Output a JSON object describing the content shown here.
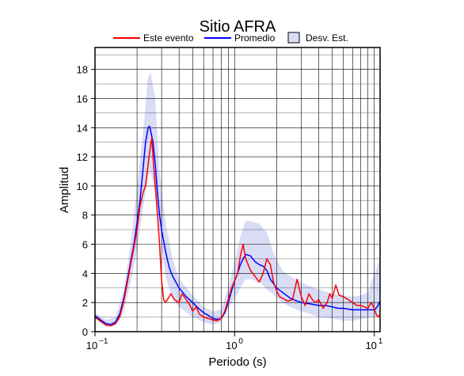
{
  "chart_data": {
    "type": "line",
    "title": "Sitio AFRA",
    "xlabel": "Periodo (s)",
    "ylabel": "Amplitud",
    "x_scale": "log",
    "xlim": [
      0.1,
      11
    ],
    "ylim": [
      0,
      19.5
    ],
    "grid": true,
    "legend_position": "top",
    "x_ticks": [
      {
        "value": 0.1,
        "base": "10",
        "exp": "−1"
      },
      {
        "value": 1,
        "base": "10",
        "exp": "0"
      },
      {
        "value": 10,
        "base": "10",
        "exp": "1"
      }
    ],
    "y_ticks": [
      0,
      2,
      4,
      6,
      8,
      10,
      12,
      14,
      16,
      18
    ],
    "legend": [
      {
        "label": "Este evento",
        "kind": "line",
        "color": "#ff0000"
      },
      {
        "label": "Promedio",
        "kind": "line",
        "color": "#0000ff"
      },
      {
        "label": "Desv. Est.",
        "kind": "patch",
        "color": "#d8dcf5"
      }
    ],
    "band": {
      "name": "Desv. Est.",
      "color": "#d8dcf5",
      "x": [
        0.1,
        0.12,
        0.14,
        0.16,
        0.18,
        0.2,
        0.22,
        0.24,
        0.25,
        0.27,
        0.29,
        0.32,
        0.36,
        0.4,
        0.5,
        0.6,
        0.7,
        0.8,
        0.9,
        1.0,
        1.1,
        1.2,
        1.3,
        1.5,
        1.7,
        1.9,
        2.2,
        2.5,
        3,
        3.5,
        4,
        5,
        6,
        7,
        8,
        9,
        10,
        11
      ],
      "upper": [
        1.3,
        0.8,
        1.0,
        2.8,
        6.0,
        10.0,
        13.5,
        17.5,
        17.8,
        16.0,
        11.0,
        7.5,
        5.0,
        3.6,
        2.5,
        1.7,
        1.4,
        1.5,
        3.0,
        4.8,
        6.5,
        7.6,
        7.6,
        7.4,
        6.8,
        5.4,
        4.2,
        3.8,
        3.4,
        3.1,
        2.9,
        2.6,
        2.5,
        2.4,
        2.5,
        2.7,
        4.0,
        5.0
      ],
      "lower": [
        0.9,
        0.35,
        0.45,
        1.3,
        3.4,
        5.6,
        8.4,
        10.6,
        11.0,
        9.6,
        6.8,
        3.8,
        2.2,
        1.7,
        1.0,
        0.65,
        0.5,
        0.65,
        1.6,
        2.3,
        3.0,
        3.6,
        3.6,
        3.4,
        2.9,
        2.5,
        2.0,
        1.7,
        1.4,
        1.2,
        1.0,
        0.9,
        0.75,
        0.75,
        0.85,
        0.95,
        1.0,
        1.3
      ]
    },
    "series": [
      {
        "name": "Promedio",
        "color": "#0000ff",
        "x": [
          0.1,
          0.11,
          0.12,
          0.13,
          0.14,
          0.15,
          0.16,
          0.17,
          0.18,
          0.19,
          0.2,
          0.21,
          0.22,
          0.23,
          0.24,
          0.245,
          0.25,
          0.26,
          0.27,
          0.28,
          0.29,
          0.3,
          0.32,
          0.34,
          0.36,
          0.4,
          0.45,
          0.5,
          0.55,
          0.6,
          0.65,
          0.7,
          0.75,
          0.8,
          0.85,
          0.9,
          0.95,
          1.0,
          1.05,
          1.1,
          1.15,
          1.2,
          1.3,
          1.4,
          1.5,
          1.6,
          1.7,
          1.8,
          2.0,
          2.2,
          2.5,
          2.8,
          3.0,
          3.5,
          4.0,
          4.5,
          5.0,
          5.5,
          6.0,
          7.0,
          8.0,
          9.0,
          10.0,
          10.5,
          11.0
        ],
        "values": [
          1.1,
          0.8,
          0.55,
          0.5,
          0.65,
          1.2,
          2.2,
          3.5,
          4.8,
          6.0,
          7.5,
          9.0,
          11.0,
          13.0,
          14.0,
          14.1,
          13.8,
          13.0,
          11.5,
          9.5,
          8.0,
          7.0,
          5.5,
          4.4,
          3.8,
          3.0,
          2.4,
          2.0,
          1.6,
          1.3,
          1.1,
          0.9,
          0.85,
          0.9,
          1.3,
          2.0,
          2.8,
          3.5,
          4.0,
          4.6,
          5.0,
          5.3,
          5.2,
          4.8,
          4.6,
          4.5,
          4.2,
          3.6,
          3.0,
          2.7,
          2.3,
          2.1,
          2.0,
          1.9,
          1.8,
          1.8,
          1.7,
          1.6,
          1.6,
          1.5,
          1.5,
          1.5,
          1.5,
          1.7,
          2.1
        ]
      },
      {
        "name": "Este evento",
        "color": "#ff0000",
        "x": [
          0.1,
          0.11,
          0.12,
          0.13,
          0.14,
          0.15,
          0.16,
          0.17,
          0.18,
          0.19,
          0.2,
          0.21,
          0.22,
          0.23,
          0.24,
          0.25,
          0.255,
          0.26,
          0.27,
          0.28,
          0.29,
          0.3,
          0.31,
          0.32,
          0.33,
          0.35,
          0.37,
          0.4,
          0.42,
          0.45,
          0.48,
          0.5,
          0.53,
          0.56,
          0.6,
          0.65,
          0.7,
          0.75,
          0.8,
          0.85,
          0.9,
          0.95,
          1.0,
          1.05,
          1.1,
          1.15,
          1.2,
          1.25,
          1.3,
          1.35,
          1.4,
          1.5,
          1.6,
          1.7,
          1.8,
          1.9,
          2.0,
          2.1,
          2.2,
          2.4,
          2.6,
          2.8,
          3.0,
          3.2,
          3.4,
          3.6,
          3.8,
          4.0,
          4.3,
          4.6,
          4.8,
          5.0,
          5.3,
          5.6,
          6.0,
          6.5,
          7.0,
          7.5,
          8.0,
          8.5,
          9.0,
          9.5,
          10.0,
          10.3,
          10.6,
          11.0
        ],
        "values": [
          1.0,
          0.7,
          0.45,
          0.4,
          0.55,
          1.0,
          2.0,
          3.3,
          4.6,
          5.8,
          7.0,
          8.6,
          9.5,
          10.0,
          11.5,
          12.8,
          13.3,
          12.0,
          10.0,
          8.0,
          6.0,
          3.5,
          2.2,
          2.0,
          2.2,
          2.6,
          2.2,
          2.0,
          2.6,
          2.2,
          1.8,
          1.4,
          1.7,
          1.2,
          1.0,
          0.9,
          0.8,
          0.75,
          0.9,
          1.4,
          2.2,
          3.0,
          3.5,
          4.0,
          5.2,
          6.0,
          5.0,
          4.6,
          4.2,
          4.0,
          3.8,
          3.4,
          4.0,
          5.0,
          4.6,
          3.4,
          2.8,
          2.4,
          2.3,
          2.1,
          2.2,
          3.6,
          2.4,
          1.8,
          2.6,
          2.2,
          2.0,
          2.2,
          1.6,
          2.0,
          2.6,
          2.3,
          3.2,
          2.5,
          2.4,
          2.2,
          2.0,
          1.8,
          1.8,
          1.7,
          1.6,
          2.0,
          1.6,
          1.2,
          1.0,
          1.2
        ]
      }
    ]
  }
}
